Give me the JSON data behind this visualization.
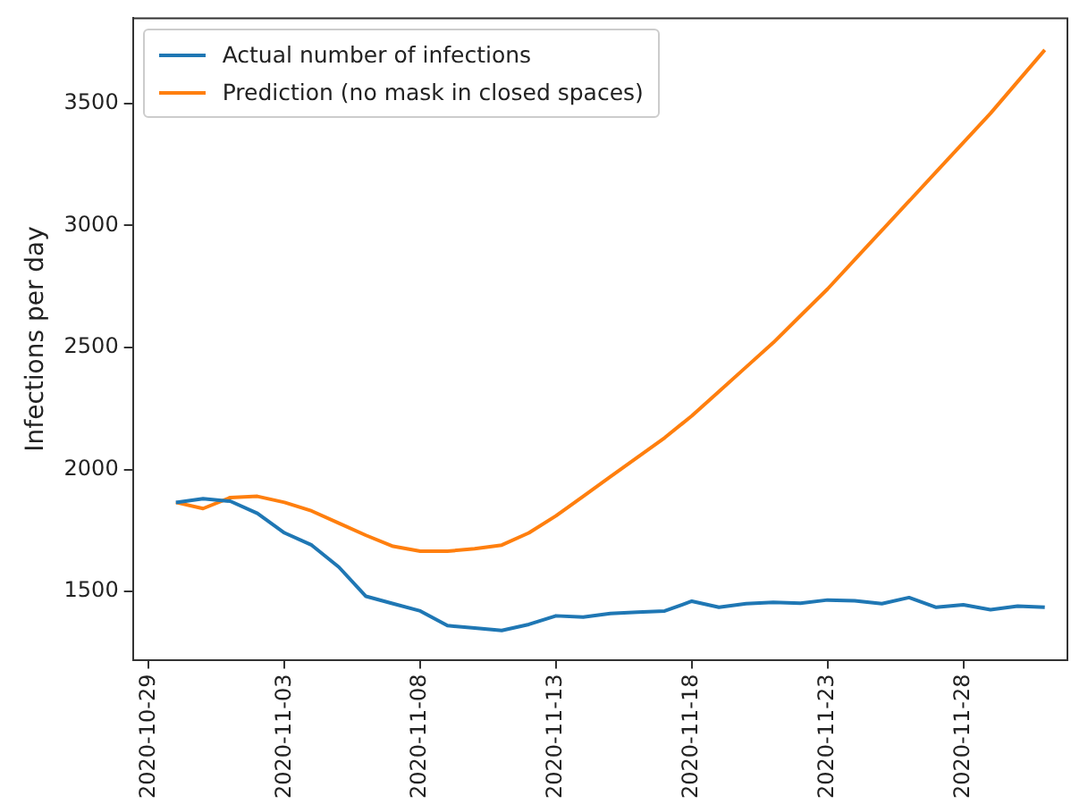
{
  "chart_data": {
    "type": "line",
    "ylabel": "Infections per day",
    "x": [
      "2020-10-30",
      "2020-10-31",
      "2020-11-01",
      "2020-11-02",
      "2020-11-03",
      "2020-11-04",
      "2020-11-05",
      "2020-11-06",
      "2020-11-07",
      "2020-11-08",
      "2020-11-09",
      "2020-11-10",
      "2020-11-11",
      "2020-11-12",
      "2020-11-13",
      "2020-11-14",
      "2020-11-15",
      "2020-11-16",
      "2020-11-17",
      "2020-11-18",
      "2020-11-19",
      "2020-11-20",
      "2020-11-21",
      "2020-11-22",
      "2020-11-23",
      "2020-11-24",
      "2020-11-25",
      "2020-11-26",
      "2020-11-27",
      "2020-11-28",
      "2020-11-29",
      "2020-11-30",
      "2020-12-01"
    ],
    "series": [
      {
        "name": "Actual number of infections",
        "color": "#1f77b4",
        "values": [
          1865,
          1880,
          1870,
          1820,
          1740,
          1690,
          1600,
          1480,
          1450,
          1420,
          1360,
          1350,
          1340,
          1365,
          1400,
          1395,
          1410,
          1415,
          1420,
          1460,
          1435,
          1450,
          1455,
          1452,
          1465,
          1462,
          1450,
          1475,
          1435,
          1445,
          1425,
          1440,
          1435
        ]
      },
      {
        "name": "Prediction (no mask in closed spaces)",
        "color": "#ff7f0e",
        "values": [
          1865,
          1840,
          1885,
          1890,
          1865,
          1830,
          1780,
          1730,
          1685,
          1665,
          1665,
          1675,
          1690,
          1740,
          1810,
          1890,
          1970,
          2050,
          2130,
          2220,
          2320,
          2420,
          2520,
          2630,
          2740,
          2860,
          2980,
          3100,
          3220,
          3340,
          3460,
          3590,
          3720
        ]
      }
    ],
    "xlim": [
      "2020-10-28T10:00",
      "2020-12-01T20:00"
    ],
    "xticks": [
      "2020-10-29",
      "2020-11-03",
      "2020-11-08",
      "2020-11-13",
      "2020-11-18",
      "2020-11-23",
      "2020-11-28"
    ],
    "ylim": [
      1220,
      3850
    ],
    "yticks": [
      1500,
      2000,
      2500,
      3000,
      3500
    ],
    "grid": false,
    "legend": "top left",
    "marker": "none",
    "line_style": "solid"
  }
}
